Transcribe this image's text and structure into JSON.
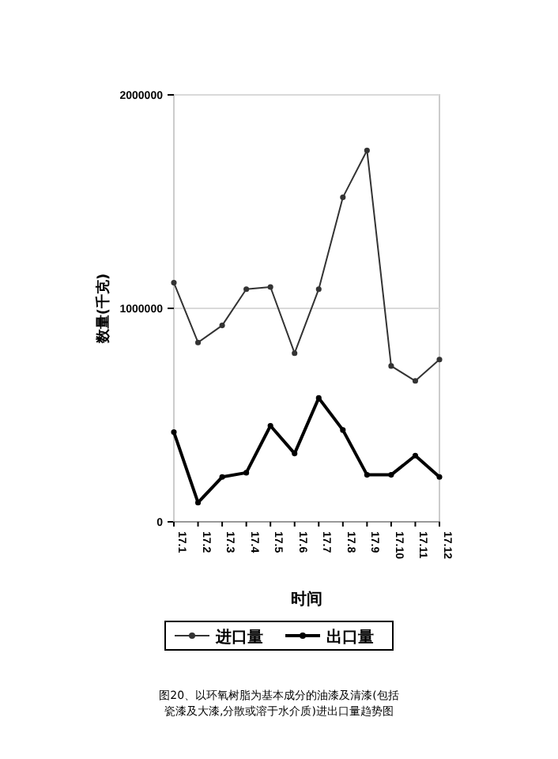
{
  "chart_data": {
    "type": "line",
    "title": "图20、以环氧树脂为基本成分的油漆及清漆(包括瓷漆及大漆,分散或溶于水介质)进出口量趋势图",
    "xlabel": "时间",
    "ylabel": "数量(千克)",
    "categories": [
      "17.1",
      "17.2",
      "17.3",
      "17.4",
      "17.5",
      "17.6",
      "17.7",
      "17.8",
      "17.9",
      "17.10",
      "17.11",
      "17.12"
    ],
    "series": [
      {
        "name": "进口量",
        "color": "#333333",
        "values": [
          1120000,
          840000,
          920000,
          1090000,
          1100000,
          790000,
          1090000,
          1520000,
          1740000,
          730000,
          660000,
          760000
        ]
      },
      {
        "name": "出口量",
        "color": "#000000",
        "values": [
          420000,
          90000,
          210000,
          230000,
          450000,
          320000,
          580000,
          430000,
          220000,
          220000,
          310000,
          210000
        ]
      }
    ],
    "ylim": [
      0,
      2000000
    ],
    "yticks": [
      0,
      1000000,
      2000000
    ],
    "grid": "y",
    "legend": "bottom",
    "marker": "circle",
    "line_style": "solid"
  }
}
